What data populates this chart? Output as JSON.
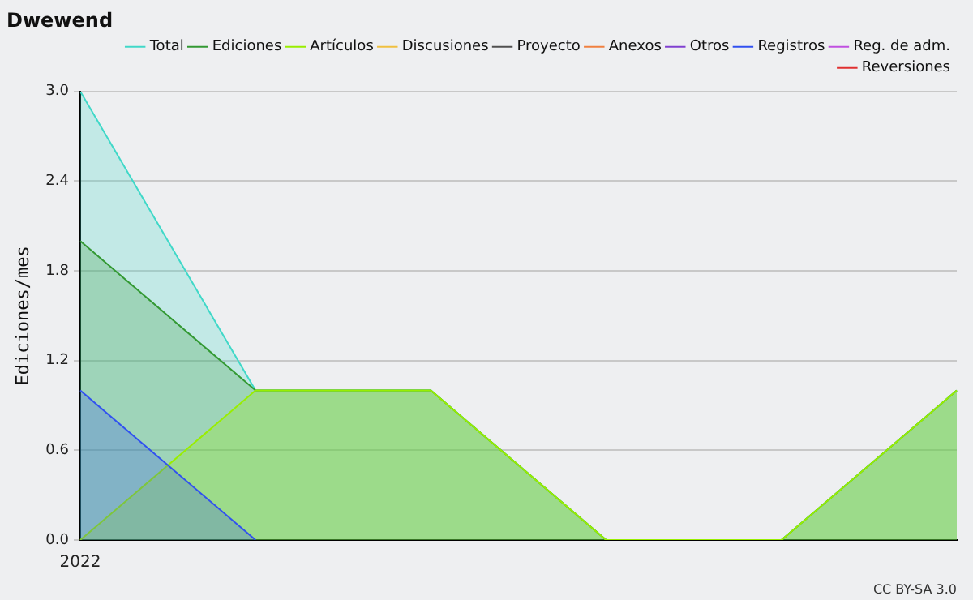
{
  "chart_data": {
    "type": "area",
    "title": "Dwewend",
    "ylabel": "Ediciones/mes",
    "categories": [
      "2022",
      null,
      null,
      null,
      null,
      null
    ],
    "series": [
      {
        "name": "Total",
        "color": "#40d8c8",
        "values": [
          3,
          1,
          1,
          0,
          0,
          1
        ]
      },
      {
        "name": "Ediciones",
        "color": "#339933",
        "values": [
          2,
          1,
          1,
          0,
          0,
          1
        ]
      },
      {
        "name": "Artículos",
        "color": "#99ee00",
        "values": [
          0,
          1,
          1,
          0,
          0,
          1
        ]
      },
      {
        "name": "Discusiones",
        "color": "#f0c040",
        "type": "line",
        "values": [
          null,
          null,
          null,
          null,
          null,
          null
        ]
      },
      {
        "name": "Proyecto",
        "color": "#505050",
        "type": "line",
        "values": [
          null,
          null,
          null,
          null,
          null,
          null
        ]
      },
      {
        "name": "Anexos",
        "color": "#f08040",
        "type": "line",
        "values": [
          null,
          null,
          null,
          null,
          null,
          null
        ]
      },
      {
        "name": "Otros",
        "color": "#8040d0",
        "type": "line",
        "values": [
          null,
          null,
          null,
          null,
          null,
          null
        ]
      },
      {
        "name": "Registros",
        "color": "#3050f0",
        "values": [
          1,
          0,
          null,
          null,
          null,
          null
        ]
      },
      {
        "name": "Reg. de adm.",
        "color": "#c050e0",
        "type": "line",
        "values": [
          null,
          null,
          null,
          null,
          null,
          null
        ]
      },
      {
        "name": "Reversiones",
        "color": "#e03030",
        "type": "line",
        "values": [
          null,
          null,
          null,
          null,
          null,
          null
        ]
      }
    ],
    "ylim": [
      0,
      3
    ],
    "yticks": [
      {
        "value": 0,
        "label": "0.0"
      },
      0.6,
      1.2,
      1.8,
      2.4,
      {
        "value": 3,
        "label": "3.0"
      }
    ],
    "grid": "y",
    "legend": "top right",
    "marker": "none",
    "annotations": [
      "CC BY-SA 3.0"
    ]
  }
}
